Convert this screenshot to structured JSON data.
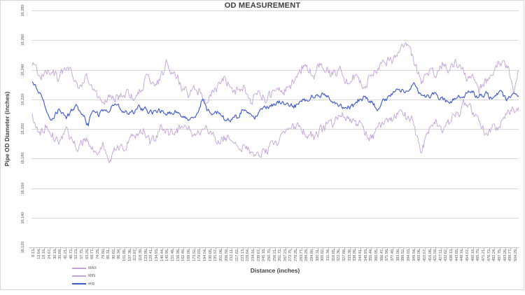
{
  "colors": {
    "background": "#ffffff",
    "border": "#d9d9d9",
    "grid": "#d9d9d9",
    "axis_line": "#bfbfbf",
    "tick_text": "#595959",
    "title_text": "#404040",
    "max_min_line": "#c3a2d8",
    "avg_line": "#3b57c4"
  },
  "chart_data": {
    "type": "line",
    "title": "OD MEASUREMENT",
    "xlabel": "Distance (inches)",
    "ylabel": "Pipe OD Diameter (inches)",
    "ylim": [
      16.12,
      16.28
    ],
    "grid": "horizontal-only",
    "y_ticks": [
      "16.120",
      "16.140",
      "16.160",
      "16.180",
      "16.200",
      "16.220",
      "16.240",
      "16.260",
      "16.280"
    ],
    "x_ticks": [
      "8.13",
      "13.64",
      "19.16",
      "24.67",
      "30.18",
      "35.69",
      "41.21",
      "46.72",
      "52.23",
      "57.75",
      "63.26",
      "68.77",
      "74.28",
      "79.80",
      "85.31",
      "90.82",
      "96.34",
      "101.85",
      "107.36",
      "112.87",
      "118.39",
      "123.90",
      "129.41",
      "134.93",
      "140.44",
      "145.95",
      "151.46",
      "156.98",
      "162.49",
      "168.00",
      "173.52",
      "179.03",
      "184.54",
      "190.05",
      "195.57",
      "201.08",
      "206.59",
      "212.11",
      "217.62",
      "223.13",
      "228.64",
      "234.16",
      "239.67",
      "245.18",
      "250.70",
      "256.21",
      "261.72",
      "267.23",
      "272.75",
      "278.26",
      "283.77",
      "289.29",
      "294.80",
      "300.31",
      "305.82",
      "311.34",
      "316.85",
      "322.36",
      "327.88",
      "333.39",
      "338.90",
      "344.41",
      "349.93",
      "355.44",
      "360.95",
      "366.47",
      "371.98",
      "377.49",
      "383.00",
      "388.52",
      "394.03",
      "399.54",
      "405.06",
      "410.57",
      "416.08",
      "421.59",
      "427.11",
      "432.62",
      "438.13",
      "443.65",
      "449.16",
      "454.67",
      "460.18",
      "465.70",
      "471.21",
      "476.72",
      "482.24",
      "487.75",
      "493.26",
      "498.77",
      "504.29"
    ],
    "legend": {
      "position": "bottom-left",
      "entries": [
        {
          "label": "MAX",
          "color": "#c3a2d8"
        },
        {
          "label": "MIN",
          "color": "#c3a2d8"
        },
        {
          "label": "avg",
          "color": "#3b57c4"
        }
      ]
    },
    "value_encoding": "keypoints are [fraction_of_x_range, thousandths_of_inch_above_16]; e.g. 244 = 16.244",
    "series": [
      {
        "name": "MAX",
        "color": "#c3a2d8",
        "stroke_width": 0.9,
        "seed": 101,
        "noise": {
          "fast_amp": 2.6,
          "fast_ar": 0.55,
          "slow_amp": 1.2,
          "slow_ar": 0.92
        },
        "keypoints": [
          [
            0.0,
            244
          ],
          [
            0.02,
            237
          ],
          [
            0.04,
            243
          ],
          [
            0.055,
            236
          ],
          [
            0.075,
            240
          ],
          [
            0.095,
            228
          ],
          [
            0.115,
            234
          ],
          [
            0.135,
            221
          ],
          [
            0.155,
            217
          ],
          [
            0.175,
            222
          ],
          [
            0.195,
            226
          ],
          [
            0.215,
            222
          ],
          [
            0.235,
            236
          ],
          [
            0.255,
            230
          ],
          [
            0.275,
            243
          ],
          [
            0.285,
            238
          ],
          [
            0.3,
            232
          ],
          [
            0.32,
            222
          ],
          [
            0.335,
            228
          ],
          [
            0.355,
            221
          ],
          [
            0.375,
            227
          ],
          [
            0.395,
            232
          ],
          [
            0.415,
            225
          ],
          [
            0.435,
            230
          ],
          [
            0.45,
            222
          ],
          [
            0.465,
            226
          ],
          [
            0.48,
            220
          ],
          [
            0.5,
            226
          ],
          [
            0.515,
            223
          ],
          [
            0.535,
            232
          ],
          [
            0.555,
            241
          ],
          [
            0.575,
            235
          ],
          [
            0.595,
            242
          ],
          [
            0.615,
            236
          ],
          [
            0.635,
            240
          ],
          [
            0.65,
            232
          ],
          [
            0.665,
            238
          ],
          [
            0.685,
            232
          ],
          [
            0.705,
            237
          ],
          [
            0.72,
            243
          ],
          [
            0.74,
            248
          ],
          [
            0.755,
            252
          ],
          [
            0.77,
            258
          ],
          [
            0.778,
            252
          ],
          [
            0.79,
            240
          ],
          [
            0.8,
            232
          ],
          [
            0.815,
            240
          ],
          [
            0.83,
            236
          ],
          [
            0.845,
            242
          ],
          [
            0.86,
            238
          ],
          [
            0.875,
            243
          ],
          [
            0.89,
            236
          ],
          [
            0.905,
            240
          ],
          [
            0.92,
            230
          ],
          [
            0.935,
            236
          ],
          [
            0.95,
            242
          ],
          [
            0.965,
            248
          ],
          [
            0.98,
            238
          ],
          [
            0.99,
            228
          ],
          [
            1.0,
            238
          ]
        ]
      },
      {
        "name": "MIN",
        "color": "#c3a2d8",
        "stroke_width": 0.9,
        "seed": 202,
        "noise": {
          "fast_amp": 2.6,
          "fast_ar": 0.55,
          "slow_amp": 1.2,
          "slow_ar": 0.92
        },
        "keypoints": [
          [
            0.0,
            211
          ],
          [
            0.015,
            198
          ],
          [
            0.03,
            203
          ],
          [
            0.05,
            192
          ],
          [
            0.07,
            199
          ],
          [
            0.09,
            190
          ],
          [
            0.11,
            196
          ],
          [
            0.13,
            188
          ],
          [
            0.145,
            193
          ],
          [
            0.158,
            181
          ],
          [
            0.172,
            190
          ],
          [
            0.188,
            186
          ],
          [
            0.205,
            194
          ],
          [
            0.225,
            199
          ],
          [
            0.245,
            193
          ],
          [
            0.265,
            202
          ],
          [
            0.285,
            197
          ],
          [
            0.31,
            201
          ],
          [
            0.33,
            197
          ],
          [
            0.36,
            198
          ],
          [
            0.395,
            194
          ],
          [
            0.43,
            190
          ],
          [
            0.455,
            184
          ],
          [
            0.475,
            183
          ],
          [
            0.5,
            191
          ],
          [
            0.52,
            196
          ],
          [
            0.55,
            200
          ],
          [
            0.58,
            194
          ],
          [
            0.61,
            203
          ],
          [
            0.64,
            208
          ],
          [
            0.66,
            202
          ],
          [
            0.67,
            199
          ],
          [
            0.695,
            193
          ],
          [
            0.72,
            202
          ],
          [
            0.74,
            205
          ],
          [
            0.76,
            210
          ],
          [
            0.778,
            206
          ],
          [
            0.8,
            186
          ],
          [
            0.815,
            200
          ],
          [
            0.83,
            205
          ],
          [
            0.845,
            199
          ],
          [
            0.86,
            206
          ],
          [
            0.875,
            210
          ],
          [
            0.893,
            216
          ],
          [
            0.91,
            208
          ],
          [
            0.925,
            200
          ],
          [
            0.94,
            196
          ],
          [
            0.955,
            203
          ],
          [
            0.97,
            208
          ],
          [
            0.985,
            212
          ],
          [
            1.0,
            215
          ]
        ]
      },
      {
        "name": "avg",
        "color": "#3b57c4",
        "stroke_width": 1.1,
        "seed": 303,
        "noise": {
          "fast_amp": 1.4,
          "fast_ar": 0.55,
          "slow_amp": 0.7,
          "slow_ar": 0.92
        },
        "keypoints": [
          [
            0.0,
            232
          ],
          [
            0.015,
            224
          ],
          [
            0.03,
            215
          ],
          [
            0.04,
            207
          ],
          [
            0.055,
            214
          ],
          [
            0.07,
            206
          ],
          [
            0.09,
            214
          ],
          [
            0.105,
            209
          ],
          [
            0.115,
            203
          ],
          [
            0.125,
            213
          ],
          [
            0.145,
            211
          ],
          [
            0.165,
            215
          ],
          [
            0.185,
            213
          ],
          [
            0.205,
            212
          ],
          [
            0.225,
            215
          ],
          [
            0.25,
            213
          ],
          [
            0.275,
            211
          ],
          [
            0.3,
            212
          ],
          [
            0.32,
            208
          ],
          [
            0.34,
            211
          ],
          [
            0.35,
            222
          ],
          [
            0.36,
            212
          ],
          [
            0.38,
            210
          ],
          [
            0.4,
            208
          ],
          [
            0.42,
            210
          ],
          [
            0.44,
            212
          ],
          [
            0.46,
            210
          ],
          [
            0.48,
            213
          ],
          [
            0.5,
            215
          ],
          [
            0.52,
            217
          ],
          [
            0.54,
            216
          ],
          [
            0.56,
            219
          ],
          [
            0.58,
            221
          ],
          [
            0.6,
            222
          ],
          [
            0.62,
            218
          ],
          [
            0.64,
            214
          ],
          [
            0.66,
            217
          ],
          [
            0.68,
            220
          ],
          [
            0.7,
            220
          ],
          [
            0.71,
            213
          ],
          [
            0.725,
            220
          ],
          [
            0.74,
            224
          ],
          [
            0.755,
            228
          ],
          [
            0.77,
            226
          ],
          [
            0.786,
            230
          ],
          [
            0.8,
            220
          ],
          [
            0.815,
            222
          ],
          [
            0.83,
            224
          ],
          [
            0.845,
            220
          ],
          [
            0.858,
            214
          ],
          [
            0.872,
            219
          ],
          [
            0.885,
            222
          ],
          [
            0.9,
            225
          ],
          [
            0.915,
            221
          ],
          [
            0.93,
            224
          ],
          [
            0.945,
            222
          ],
          [
            0.96,
            226
          ],
          [
            0.975,
            223
          ],
          [
            0.99,
            226
          ],
          [
            1.0,
            224
          ]
        ]
      }
    ]
  }
}
